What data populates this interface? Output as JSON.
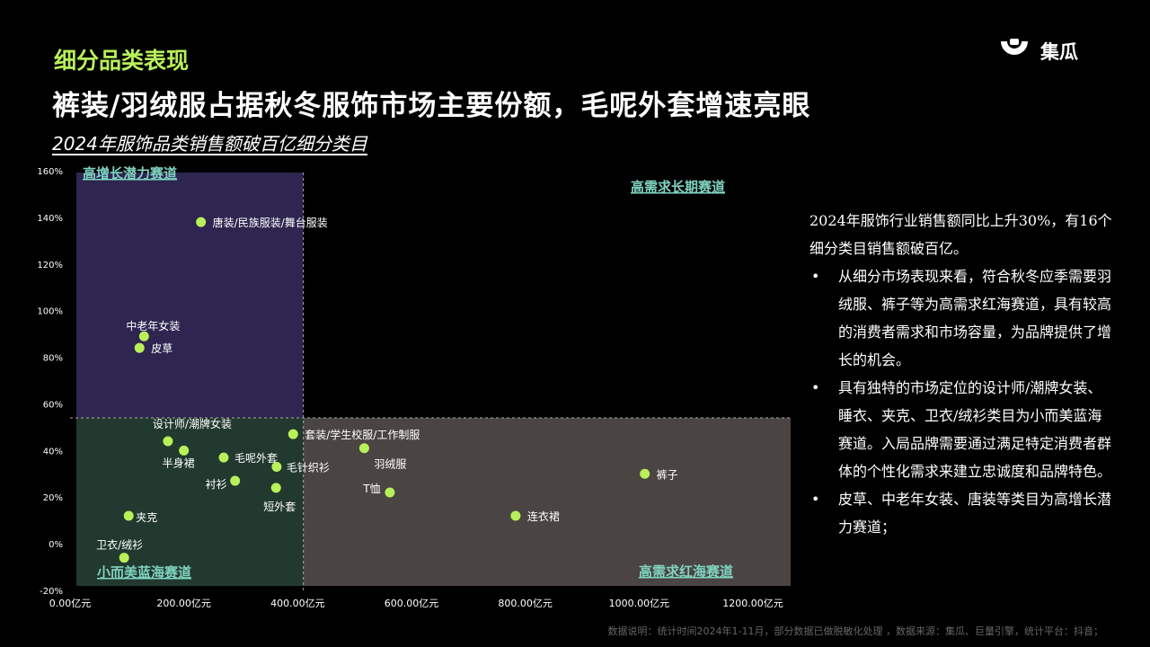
{
  "header": {
    "section_title": "细分品类表现",
    "headline": "裤装/羽绒服占据秋冬服饰市场主要份额，毛呢外套增速亮眼",
    "subtitle": "2024年服饰品类销售额破百亿细分类目"
  },
  "logo": {
    "text": "集瓜"
  },
  "colors": {
    "accent": "#b8f05a",
    "quadrant_top_left": "#2e2550",
    "quadrant_bottom_left": "#22392f",
    "quadrant_bottom_right": "#4a4442",
    "quadrant_label": "#7fd3c0"
  },
  "chart_data": {
    "type": "scatter",
    "title": "2024年服饰品类销售额破百亿细分类目",
    "xlabel": "",
    "ylabel": "",
    "xlim": [
      0,
      1200
    ],
    "ylim": [
      -20,
      160
    ],
    "x_ticks": [
      "0.00亿元",
      "200.00亿元",
      "400.00亿元",
      "600.00亿元",
      "800.00亿元",
      "1000.00亿元",
      "1200.00亿元"
    ],
    "y_ticks": [
      "160%",
      "140%",
      "120%",
      "100%",
      "80%",
      "60%",
      "40%",
      "20%",
      "0%",
      "-20%"
    ],
    "divider": {
      "x": 410,
      "y": 54
    },
    "quadrant_labels": {
      "top_left": "高增长潜力赛道",
      "top_right": "高需求长期赛道",
      "bottom_left": "小而美蓝海赛道",
      "bottom_right": "高需求红海赛道"
    },
    "points": [
      {
        "label": "唐装/民族服装/舞台服装",
        "x": 230,
        "y": 138
      },
      {
        "label": "中老年女装",
        "x": 130,
        "y": 89
      },
      {
        "label": "皮草",
        "x": 122,
        "y": 84
      },
      {
        "label": "设计师/潮牌女装",
        "x": 172,
        "y": 44
      },
      {
        "label": "半身裙",
        "x": 200,
        "y": 40
      },
      {
        "label": "毛呢外套",
        "x": 270,
        "y": 37
      },
      {
        "label": "套装/学生校服/工作制服",
        "x": 392,
        "y": 47
      },
      {
        "label": "毛针织衫",
        "x": 363,
        "y": 33
      },
      {
        "label": "羽绒服",
        "x": 517,
        "y": 41
      },
      {
        "label": "衬衫",
        "x": 290,
        "y": 27
      },
      {
        "label": "短外套",
        "x": 362,
        "y": 24
      },
      {
        "label": "T恤",
        "x": 562,
        "y": 22
      },
      {
        "label": "裤子",
        "x": 1010,
        "y": 30
      },
      {
        "label": "夹克",
        "x": 103,
        "y": 12
      },
      {
        "label": "连衣裙",
        "x": 783,
        "y": 12
      },
      {
        "label": "卫衣/绒衫",
        "x": 95,
        "y": -6
      }
    ],
    "point_color": "#b8f05a"
  },
  "description": {
    "intro": "2024年服饰行业销售额同比上升30%，有16个细分类目销售额破百亿。",
    "bullets": [
      "从细分市场表现来看，符合秋冬应季需要羽绒服、裤子等为高需求红海赛道，具有较高的消费者需求和市场容量，为品牌提供了增长的机会。",
      "具有独特的市场定位的设计师/潮牌女装、睡衣、夹克、卫衣/绒衫类目为小而美蓝海赛道。入局品牌需要通过满足特定消费者群体的个性化需求来建立忠诚度和品牌特色。",
      "皮草、中老年女装、唐装等类目为高增长潜力赛道；"
    ],
    "bullet_symbol": "•"
  },
  "footnote": "数据说明：统计时间2024年1-11月，部分数据已做脱敏化处理 ，数据来源：集瓜、巨量引擎，统计平台：抖音；"
}
